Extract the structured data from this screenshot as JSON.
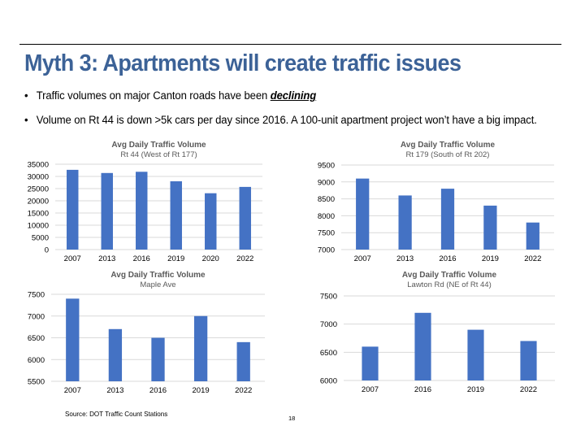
{
  "slide": {
    "title": "Myth 3: Apartments will create traffic issues",
    "bullets": [
      {
        "text": "Traffic volumes on major Canton roads have been ",
        "emphasis": "declining"
      },
      {
        "text": "Volume on Rt 44 is down >5k cars per day since 2016. A 100-unit apartment project won’t have a big impact.",
        "emphasis": ""
      }
    ],
    "bullet_glyph": "•",
    "source": "Source: DOT Traffic Count Stations",
    "page_number": "18"
  },
  "colors": {
    "title": "#3c6297",
    "bar": "#4472c4",
    "gridline": "#d9d9d9",
    "chart_title": "#595959"
  },
  "chart_data": [
    {
      "type": "bar",
      "title": "Avg Daily Traffic Volume",
      "subtitle": "Rt 44 (West of Rt 177)",
      "xlabel": "",
      "ylabel": "",
      "categories": [
        "2007",
        "2013",
        "2016",
        "2019",
        "2020",
        "2022"
      ],
      "values": [
        32700,
        31400,
        31900,
        28000,
        23100,
        25700
      ],
      "ylim": [
        0,
        35000
      ],
      "yticks": [
        0,
        5000,
        10000,
        15000,
        20000,
        25000,
        30000,
        35000
      ],
      "grid": true,
      "legend": "none"
    },
    {
      "type": "bar",
      "title": "Avg Daily Traffic Volume",
      "subtitle": "Rt 179 (South of Rt 202)",
      "xlabel": "",
      "ylabel": "",
      "categories": [
        "2007",
        "2013",
        "2016",
        "2019",
        "2022"
      ],
      "values": [
        9100,
        8600,
        8800,
        8300,
        7800
      ],
      "ylim": [
        7000,
        9500
      ],
      "yticks": [
        7000,
        7500,
        8000,
        8500,
        9000,
        9500
      ],
      "grid": true,
      "legend": "none"
    },
    {
      "type": "bar",
      "title": "Avg Daily Traffic Volume",
      "subtitle": "Maple Ave",
      "xlabel": "",
      "ylabel": "",
      "categories": [
        "2007",
        "2013",
        "2016",
        "2019",
        "2022"
      ],
      "values": [
        7400,
        6700,
        6500,
        7000,
        6400
      ],
      "ylim": [
        5500,
        7500
      ],
      "yticks": [
        5500,
        6000,
        6500,
        7000,
        7500
      ],
      "grid": true,
      "legend": "none"
    },
    {
      "type": "bar",
      "title": "Avg Daily Traffic Volume",
      "subtitle": "Lawton Rd (NE of Rt 44)",
      "xlabel": "",
      "ylabel": "",
      "categories": [
        "2007",
        "2016",
        "2019",
        "2022"
      ],
      "values": [
        6600,
        7200,
        6900,
        6700
      ],
      "ylim": [
        6000,
        7500
      ],
      "yticks": [
        6000,
        6500,
        7000,
        7500
      ],
      "grid": true,
      "legend": "none"
    }
  ]
}
